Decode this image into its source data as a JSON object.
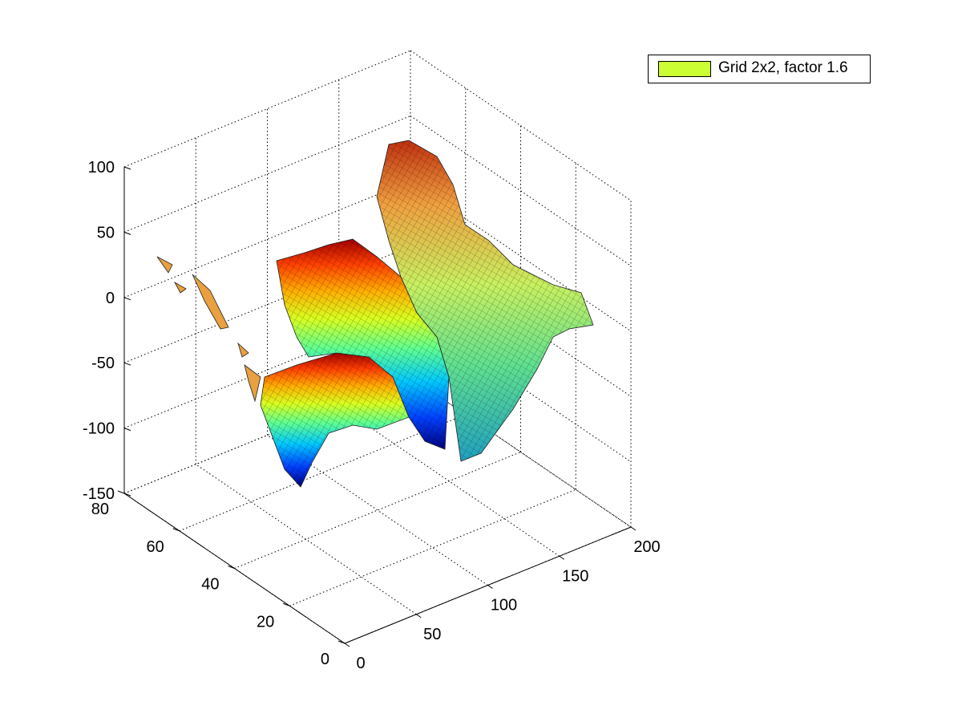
{
  "chart_data": {
    "type": "surface",
    "title": "",
    "xlabel": "",
    "ylabel": "",
    "zlabel": "",
    "xlim": [
      0,
      200
    ],
    "ylim": [
      0,
      80
    ],
    "zlim": [
      -150,
      100
    ],
    "x_ticks": [
      "0",
      "50",
      "100",
      "150",
      "200"
    ],
    "y_ticks": [
      "0",
      "20",
      "40",
      "60",
      "80"
    ],
    "z_ticks": [
      "100",
      "50",
      "0",
      "-50",
      "-100",
      "-150"
    ],
    "grid": true,
    "colormap": "jet",
    "legend_position": "top-right",
    "series": [
      {
        "name": "Grid 2x2, factor 1.6",
        "color": "#ccff33"
      }
    ],
    "approx_extrema": {
      "z_max": 100,
      "z_min": -145
    }
  },
  "legend": {
    "label": "Grid 2x2, factor 1.6",
    "swatch_color": "#ccff33"
  }
}
